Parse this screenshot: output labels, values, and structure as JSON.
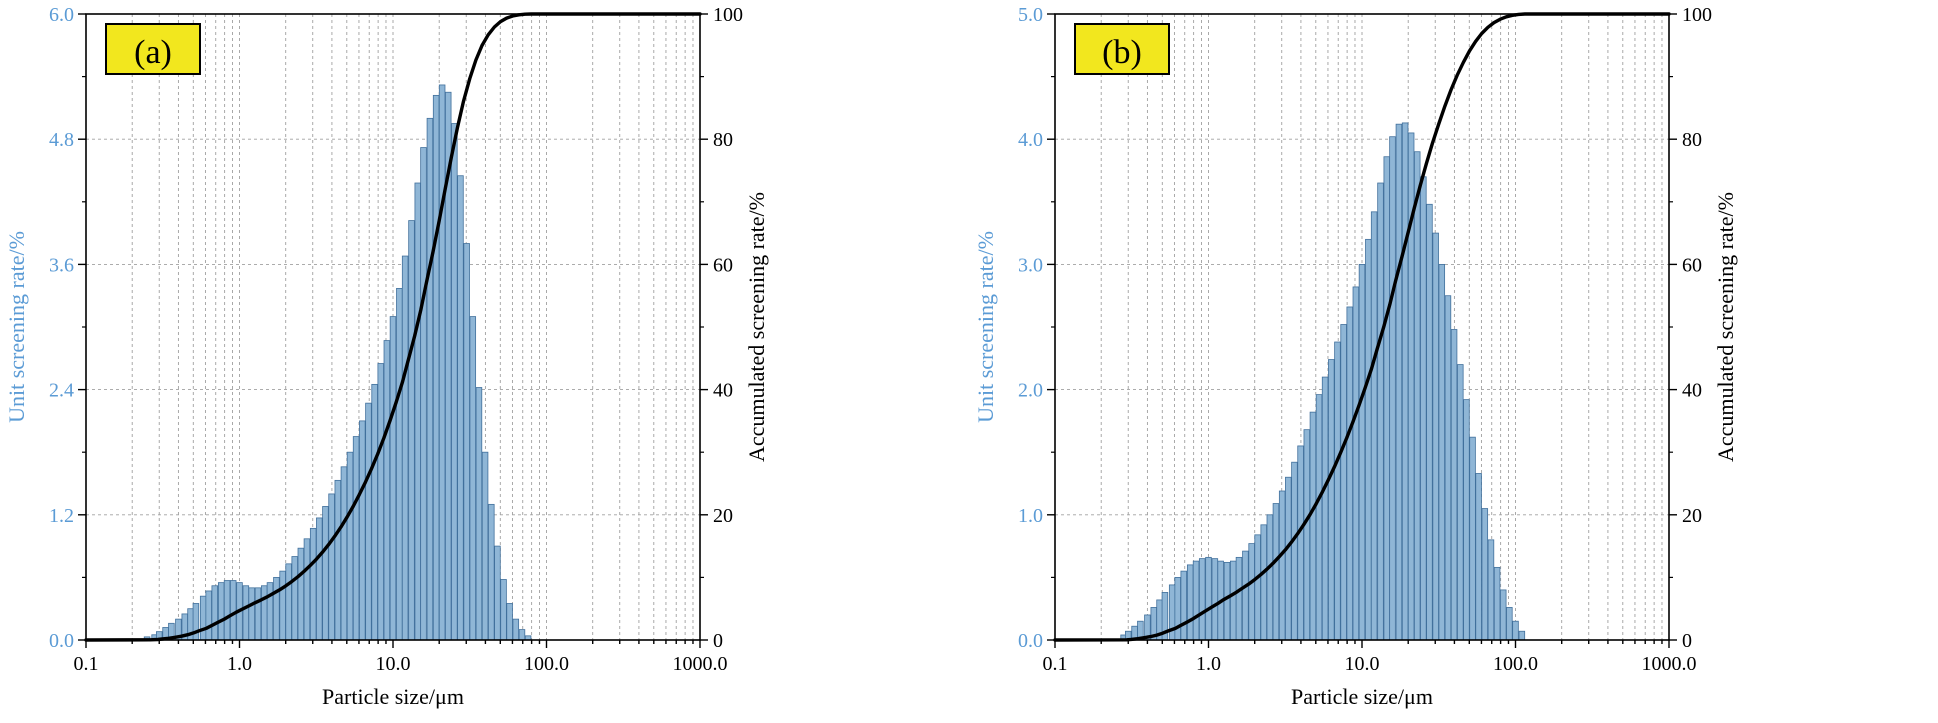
{
  "figure": {
    "background": "#ffffff",
    "description": "Two particle size distribution panels: histogram of unit screening rate with cumulative (accumulated) screening rate curve on log x-axis"
  },
  "style": {
    "bar_fill": "#8fb6d6",
    "bar_stroke": "#41709c",
    "curve_color": "#000000",
    "grid_color": "#a0a0a0",
    "frame_color": "#000000",
    "left_axis_color": "#5b9bd5",
    "panel_label_bg": "#f2e71e",
    "panel_label_border": "#000000"
  },
  "chart_data": [
    {
      "id": "a",
      "type": "bar",
      "title": "(a)",
      "xlabel": "Particle size/μm",
      "ylabel_left": "Unit screening rate/%",
      "ylabel_right": "Accumulated screening rate/%",
      "x_scale": "log",
      "grid": true,
      "xlim": [
        0.1,
        1000
      ],
      "ylim_left": [
        0,
        6
      ],
      "ylim_right": [
        0,
        100
      ],
      "x_ticks": [
        "0.1",
        "1.0",
        "10.0",
        "100.0",
        "1000.0"
      ],
      "y_left_ticks": [
        "0.0",
        "1.2",
        "2.4",
        "3.6",
        "4.8",
        "6.0"
      ],
      "y_right_ticks": [
        "0",
        "20",
        "40",
        "60",
        "80",
        "100"
      ],
      "bars": {
        "x": [
          0.25,
          0.28,
          0.3,
          0.33,
          0.36,
          0.4,
          0.44,
          0.48,
          0.52,
          0.58,
          0.63,
          0.69,
          0.76,
          0.83,
          0.91,
          1.0,
          1.1,
          1.2,
          1.32,
          1.45,
          1.58,
          1.74,
          1.91,
          2.09,
          2.29,
          2.51,
          2.75,
          3.02,
          3.31,
          3.63,
          3.98,
          4.37,
          4.79,
          5.25,
          5.75,
          6.31,
          6.92,
          7.59,
          8.32,
          9.12,
          10.0,
          11.0,
          12.0,
          13.2,
          14.5,
          15.8,
          17.4,
          19.1,
          20.9,
          22.9,
          25.1,
          27.5,
          30.2,
          33.1,
          36.3,
          39.8,
          43.7,
          47.9,
          52.5,
          57.5,
          63.1,
          69.2,
          75.9
        ],
        "values": [
          0.03,
          0.05,
          0.08,
          0.12,
          0.16,
          0.2,
          0.25,
          0.3,
          0.35,
          0.42,
          0.47,
          0.52,
          0.55,
          0.57,
          0.57,
          0.55,
          0.52,
          0.5,
          0.5,
          0.52,
          0.55,
          0.6,
          0.66,
          0.73,
          0.8,
          0.88,
          0.97,
          1.07,
          1.17,
          1.28,
          1.4,
          1.53,
          1.66,
          1.8,
          1.95,
          2.1,
          2.27,
          2.45,
          2.65,
          2.87,
          3.1,
          3.37,
          3.68,
          4.02,
          4.38,
          4.72,
          5.0,
          5.22,
          5.32,
          5.25,
          4.95,
          4.45,
          3.8,
          3.1,
          2.42,
          1.8,
          1.3,
          0.9,
          0.58,
          0.35,
          0.2,
          0.1,
          0.04
        ]
      },
      "cumulative_note": "Accumulated curve = running sum of bar values normalized to 100%, flat at 0 before first bar and flat at 100 after last bar"
    },
    {
      "id": "b",
      "type": "bar",
      "title": "(b)",
      "xlabel": "Particle size/μm",
      "ylabel_left": "Unit screening rate/%",
      "ylabel_right": "Accumulated screening rate/%",
      "x_scale": "log",
      "grid": true,
      "xlim": [
        0.1,
        1000
      ],
      "ylim_left": [
        0,
        5
      ],
      "ylim_right": [
        0,
        100
      ],
      "x_ticks": [
        "0.1",
        "1.0",
        "10.0",
        "100.0",
        "1000.0"
      ],
      "y_left_ticks": [
        "0.0",
        "1.0",
        "2.0",
        "3.0",
        "4.0",
        "5.0"
      ],
      "y_right_ticks": [
        "0",
        "20",
        "40",
        "60",
        "80",
        "100"
      ],
      "bars": {
        "x": [
          0.28,
          0.3,
          0.33,
          0.36,
          0.4,
          0.44,
          0.48,
          0.52,
          0.58,
          0.63,
          0.69,
          0.76,
          0.83,
          0.91,
          1.0,
          1.1,
          1.2,
          1.32,
          1.45,
          1.58,
          1.74,
          1.91,
          2.09,
          2.29,
          2.51,
          2.75,
          3.02,
          3.31,
          3.63,
          3.98,
          4.37,
          4.79,
          5.25,
          5.75,
          6.31,
          6.92,
          7.59,
          8.32,
          9.12,
          10.0,
          11.0,
          12.0,
          13.2,
          14.5,
          15.8,
          17.4,
          19.1,
          20.9,
          22.9,
          25.1,
          27.5,
          30.2,
          33.1,
          36.3,
          39.8,
          43.7,
          47.9,
          52.5,
          57.5,
          63.1,
          69.2,
          75.9,
          83.2,
          91.2,
          100.0,
          110.0
        ],
        "values": [
          0.04,
          0.07,
          0.11,
          0.15,
          0.2,
          0.26,
          0.32,
          0.38,
          0.44,
          0.5,
          0.55,
          0.6,
          0.63,
          0.65,
          0.66,
          0.65,
          0.63,
          0.62,
          0.63,
          0.66,
          0.71,
          0.77,
          0.84,
          0.92,
          1.0,
          1.09,
          1.19,
          1.3,
          1.42,
          1.55,
          1.68,
          1.82,
          1.96,
          2.1,
          2.24,
          2.38,
          2.52,
          2.66,
          2.82,
          3.0,
          3.2,
          3.42,
          3.65,
          3.86,
          4.02,
          4.12,
          4.13,
          4.05,
          3.9,
          3.7,
          3.48,
          3.25,
          3.0,
          2.75,
          2.48,
          2.2,
          1.92,
          1.62,
          1.33,
          1.05,
          0.8,
          0.58,
          0.4,
          0.26,
          0.15,
          0.07
        ]
      },
      "cumulative_note": "Accumulated curve = running sum of bar values normalized to 100%, flat at 0 before first bar and flat at 100 after last bar"
    }
  ]
}
